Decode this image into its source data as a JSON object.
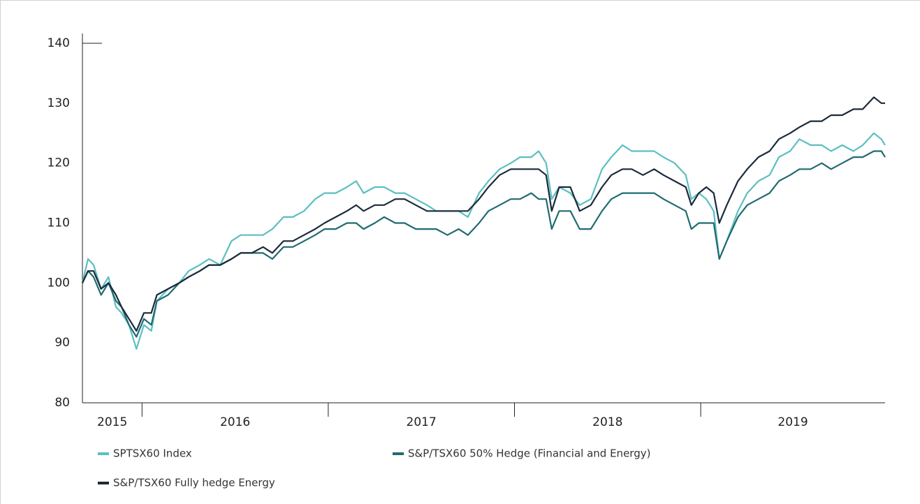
{
  "chart_data": {
    "type": "line",
    "x": [
      2015.68,
      2015.71,
      2015.74,
      2015.78,
      2015.82,
      2015.86,
      2015.89,
      2015.93,
      2015.97,
      2016.01,
      2016.05,
      2016.08,
      2016.14,
      2016.2,
      2016.25,
      2016.31,
      2016.36,
      2016.42,
      2016.48,
      2016.53,
      2016.59,
      2016.65,
      2016.7,
      2016.76,
      2016.81,
      2016.87,
      2016.93,
      2016.98,
      2017.04,
      2017.1,
      2017.15,
      2017.19,
      2017.25,
      2017.3,
      2017.36,
      2017.41,
      2017.47,
      2017.53,
      2017.58,
      2017.64,
      2017.7,
      2017.75,
      2017.81,
      2017.86,
      2017.92,
      2017.98,
      2018.03,
      2018.09,
      2018.13,
      2018.17,
      2018.2,
      2018.24,
      2018.3,
      2018.35,
      2018.41,
      2018.47,
      2018.52,
      2018.58,
      2018.63,
      2018.69,
      2018.75,
      2018.8,
      2018.86,
      2018.92,
      2018.95,
      2018.99,
      2019.03,
      2019.07,
      2019.1,
      2019.14,
      2019.2,
      2019.25,
      2019.31,
      2019.37,
      2019.42,
      2019.48,
      2019.53,
      2019.59,
      2019.65,
      2019.7,
      2019.76,
      2019.82,
      2019.87,
      2019.93,
      2019.97,
      2019.99
    ],
    "series": [
      {
        "name": "SPTSX60 Index",
        "color": "#5bbfc0",
        "values": [
          100,
          104,
          103,
          99,
          101,
          96,
          95,
          93,
          89,
          93,
          92,
          97,
          99,
          100,
          102,
          103,
          104,
          103,
          107,
          108,
          108,
          108,
          109,
          111,
          111,
          112,
          114,
          115,
          115,
          116,
          117,
          115,
          116,
          116,
          115,
          115,
          114,
          113,
          112,
          112,
          112,
          111,
          115,
          117,
          119,
          120,
          121,
          121,
          122,
          120,
          114,
          116,
          115,
          113,
          114,
          119,
          121,
          123,
          122,
          122,
          122,
          121,
          120,
          118,
          114,
          115,
          114,
          112,
          104,
          107,
          112,
          115,
          117,
          118,
          121,
          122,
          124,
          123,
          123,
          122,
          123,
          122,
          123,
          125,
          124,
          123
        ]
      },
      {
        "name": "S&P/TSX60 50% Hedge (Financial and Energy)",
        "color": "#1f6b70",
        "values": [
          100,
          102,
          101,
          98,
          100,
          97,
          96,
          93,
          91,
          94,
          93,
          97,
          98,
          100,
          101,
          102,
          103,
          103,
          104,
          105,
          105,
          105,
          104,
          106,
          106,
          107,
          108,
          109,
          109,
          110,
          110,
          109,
          110,
          111,
          110,
          110,
          109,
          109,
          109,
          108,
          109,
          108,
          110,
          112,
          113,
          114,
          114,
          115,
          114,
          114,
          109,
          112,
          112,
          109,
          109,
          112,
          114,
          115,
          115,
          115,
          115,
          114,
          113,
          112,
          109,
          110,
          110,
          110,
          104,
          107,
          111,
          113,
          114,
          115,
          117,
          118,
          119,
          119,
          120,
          119,
          120,
          121,
          121,
          122,
          122,
          121
        ]
      },
      {
        "name": "S&P/TSX60 Fully hedge Energy",
        "color": "#1b2a3a",
        "values": [
          100,
          102,
          102,
          99,
          100,
          98,
          96,
          94,
          92,
          95,
          95,
          98,
          99,
          100,
          101,
          102,
          103,
          103,
          104,
          105,
          105,
          106,
          105,
          107,
          107,
          108,
          109,
          110,
          111,
          112,
          113,
          112,
          113,
          113,
          114,
          114,
          113,
          112,
          112,
          112,
          112,
          112,
          114,
          116,
          118,
          119,
          119,
          119,
          119,
          118,
          112,
          116,
          116,
          112,
          113,
          116,
          118,
          119,
          119,
          118,
          119,
          118,
          117,
          116,
          113,
          115,
          116,
          115,
          110,
          113,
          117,
          119,
          121,
          122,
          124,
          125,
          126,
          127,
          127,
          128,
          128,
          129,
          129,
          131,
          130,
          130
        ]
      }
    ],
    "xlim": [
      2015.68,
      2019.99
    ],
    "xticks": [
      2016,
      2017,
      2018,
      2019
    ],
    "year_labels": [
      "2015",
      "2016",
      "2017",
      "2018",
      "2019"
    ],
    "ylim": [
      80,
      140
    ],
    "yticks": [
      80,
      90,
      100,
      110,
      120,
      130,
      140
    ]
  }
}
